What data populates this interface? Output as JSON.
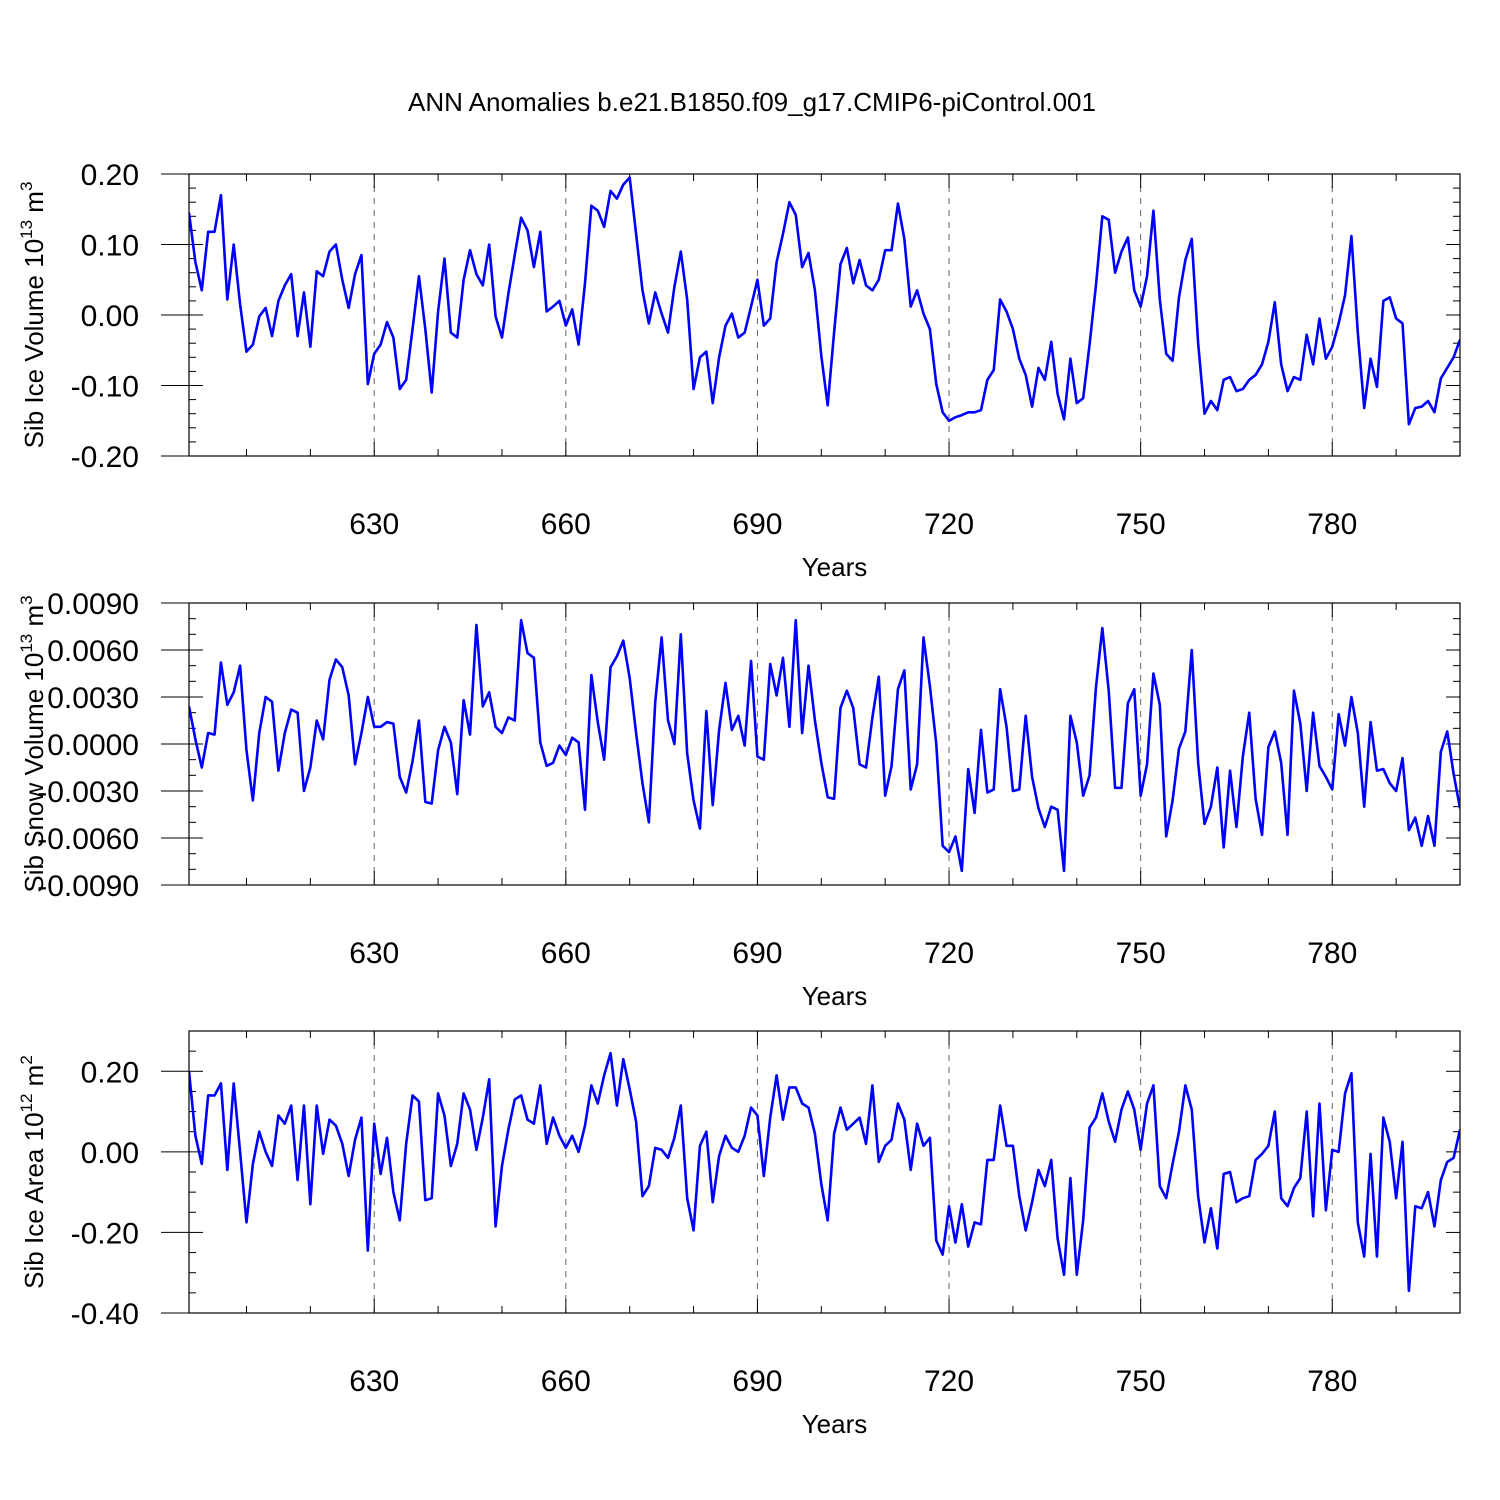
{
  "title": "ANN Anomalies b.e21.B1850.f09_g17.CMIP6-piControl.001",
  "line_color": "#0000ff",
  "chart_data": [
    {
      "type": "line",
      "title": "ANN Anomalies b.e21.B1850.f09_g17.CMIP6-piControl.001",
      "xlabel": "Years",
      "ylabel": "Sib Ice Volume 10^13 m^3",
      "ylabel_parts": [
        "Sib Ice Volume 10",
        "13",
        " m",
        "3"
      ],
      "x_start": 601,
      "x_step": 1,
      "xlim": [
        601,
        800
      ],
      "ylim": [
        -0.2,
        0.2
      ],
      "xticks": [
        630,
        660,
        690,
        720,
        750,
        780
      ],
      "xtick_labels": [
        "630",
        "660",
        "690",
        "720",
        "750",
        "780"
      ],
      "yticks": [
        -0.2,
        -0.1,
        0.0,
        0.1,
        0.2
      ],
      "ytick_labels": [
        "-0.20",
        "-0.10",
        "0.00",
        "0.10",
        "0.20"
      ],
      "y_minor_step": 0.02,
      "values": [
        0.145,
        0.075,
        0.035,
        0.118,
        0.118,
        0.17,
        0.022,
        0.1,
        0.015,
        -0.052,
        -0.042,
        -0.002,
        0.01,
        -0.03,
        0.02,
        0.042,
        0.058,
        -0.03,
        0.032,
        -0.045,
        0.062,
        0.055,
        0.09,
        0.1,
        0.05,
        0.01,
        0.058,
        0.085,
        -0.098,
        -0.055,
        -0.042,
        -0.01,
        -0.032,
        -0.105,
        -0.092,
        -0.02,
        0.055,
        -0.02,
        -0.11,
        0.005,
        0.08,
        -0.025,
        -0.032,
        0.05,
        0.092,
        0.058,
        0.042,
        0.1,
        -0.002,
        -0.032,
        0.03,
        0.085,
        0.138,
        0.12,
        0.068,
        0.118,
        0.005,
        0.012,
        0.02,
        -0.015,
        0.008,
        -0.042,
        0.045,
        0.155,
        0.148,
        0.125,
        0.176,
        0.165,
        0.185,
        0.195,
        0.115,
        0.035,
        -0.012,
        0.032,
        0.002,
        -0.025,
        0.04,
        0.09,
        0.022,
        -0.105,
        -0.06,
        -0.052,
        -0.125,
        -0.06,
        -0.015,
        0.002,
        -0.032,
        -0.025,
        0.012,
        0.05,
        -0.015,
        -0.005,
        0.075,
        0.115,
        0.16,
        0.142,
        0.068,
        0.088,
        0.035,
        -0.058,
        -0.128,
        -0.025,
        0.072,
        0.095,
        0.045,
        0.078,
        0.042,
        0.035,
        0.05,
        0.092,
        0.092,
        0.158,
        0.108,
        0.012,
        0.035,
        0.002,
        -0.02,
        -0.098,
        -0.138,
        -0.15,
        -0.145,
        -0.142,
        -0.138,
        -0.138,
        -0.135,
        -0.092,
        -0.078,
        0.022,
        0.005,
        -0.02,
        -0.062,
        -0.085,
        -0.13,
        -0.075,
        -0.092,
        -0.038,
        -0.112,
        -0.148,
        -0.062,
        -0.125,
        -0.118,
        -0.042,
        0.042,
        0.14,
        0.135,
        0.06,
        0.09,
        0.11,
        0.035,
        0.012,
        0.055,
        0.148,
        0.022,
        -0.055,
        -0.065,
        0.025,
        0.078,
        0.108,
        -0.04,
        -0.14,
        -0.122,
        -0.135,
        -0.092,
        -0.088,
        -0.108,
        -0.105,
        -0.092,
        -0.085,
        -0.07,
        -0.038,
        0.018,
        -0.07,
        -0.108,
        -0.088,
        -0.092,
        -0.028,
        -0.07,
        -0.005,
        -0.062,
        -0.045,
        -0.012,
        0.028,
        0.112,
        -0.025,
        -0.132,
        -0.062,
        -0.102,
        0.02,
        0.025,
        -0.005,
        -0.012,
        -0.155,
        -0.132,
        -0.13,
        -0.122,
        -0.138,
        -0.09,
        -0.075,
        -0.06,
        -0.035
      ]
    },
    {
      "type": "line",
      "xlabel": "Years",
      "ylabel": "Sib Snow Volume 10^13 m^3",
      "ylabel_parts": [
        "Sib Snow Volume 10",
        "13",
        " m",
        "3"
      ],
      "x_start": 601,
      "x_step": 1,
      "xlim": [
        601,
        800
      ],
      "ylim": [
        -0.009,
        0.009
      ],
      "xticks": [
        630,
        660,
        690,
        720,
        750,
        780
      ],
      "xtick_labels": [
        "630",
        "660",
        "690",
        "720",
        "750",
        "780"
      ],
      "yticks": [
        -0.009,
        -0.006,
        -0.003,
        0.0,
        0.003,
        0.006,
        0.009
      ],
      "ytick_labels": [
        "-0.0090",
        "-0.0060",
        "-0.0030",
        "0.0000",
        "0.0030",
        "0.0060",
        "0.0090"
      ],
      "y_minor_step": 0.001,
      "values": [
        0.0024,
        0.0003,
        -0.0015,
        0.0007,
        0.0006,
        0.0052,
        0.0025,
        0.0033,
        0.005,
        -0.0004,
        -0.0036,
        0.0007,
        0.003,
        0.0027,
        -0.0017,
        0.0007,
        0.0022,
        0.002,
        -0.003,
        -0.0015,
        0.0015,
        0.0003,
        0.0041,
        0.0054,
        0.0049,
        0.0031,
        -0.0013,
        0.0007,
        0.003,
        0.0011,
        0.0011,
        0.0014,
        0.0013,
        -0.0021,
        -0.0031,
        -0.0011,
        0.0015,
        -0.0037,
        -0.0038,
        -0.0004,
        0.0011,
        0.0001,
        -0.0032,
        0.0028,
        0.0006,
        0.0076,
        0.0024,
        0.0033,
        0.0011,
        0.0007,
        0.0017,
        0.0015,
        0.0079,
        0.0058,
        0.0055,
        0.0001,
        -0.0014,
        -0.0012,
        -0.0001,
        -0.0007,
        0.0004,
        0.0001,
        -0.0042,
        0.0044,
        0.0014,
        -0.001,
        0.0049,
        0.0056,
        0.0066,
        0.0042,
        0.0007,
        -0.0025,
        -0.005,
        0.0027,
        0.0068,
        0.0015,
        0.0,
        0.007,
        -0.0006,
        -0.0036,
        -0.0054,
        0.0021,
        -0.0039,
        0.0009,
        0.0039,
        0.0009,
        0.0018,
        -0.0001,
        0.0053,
        -0.0008,
        -0.001,
        0.0051,
        0.0031,
        0.0055,
        0.0011,
        0.0079,
        0.0007,
        0.005,
        0.0015,
        -0.0012,
        -0.0034,
        -0.0035,
        0.0023,
        0.0034,
        0.0023,
        -0.0013,
        -0.0015,
        0.0017,
        0.0043,
        -0.0033,
        -0.0014,
        0.0035,
        0.0047,
        -0.0029,
        -0.0013,
        0.0068,
        0.0037,
        0.0,
        -0.0065,
        -0.0069,
        -0.0059,
        -0.0081,
        -0.0016,
        -0.0044,
        0.0009,
        -0.0031,
        -0.0029,
        0.0035,
        0.0011,
        -0.003,
        -0.0029,
        0.0018,
        -0.0021,
        -0.0041,
        -0.0053,
        -0.004,
        -0.0042,
        -0.0081,
        0.0018,
        0.0001,
        -0.0033,
        -0.002,
        0.0036,
        0.0074,
        0.0034,
        -0.0028,
        -0.0028,
        0.0026,
        0.0035,
        -0.0033,
        -0.0013,
        0.0045,
        0.0025,
        -0.0059,
        -0.0036,
        -0.0003,
        0.0008,
        0.006,
        -0.0012,
        -0.0051,
        -0.004,
        -0.0015,
        -0.0066,
        -0.0017,
        -0.0053,
        -0.0008,
        0.002,
        -0.0035,
        -0.0058,
        -0.0002,
        0.0008,
        -0.0012,
        -0.0058,
        0.0034,
        0.0013,
        -0.003,
        0.002,
        -0.0014,
        -0.0021,
        -0.0029,
        0.0019,
        -0.0001,
        0.003,
        0.0007,
        -0.004,
        0.0014,
        -0.0017,
        -0.0016,
        -0.0025,
        -0.003,
        -0.0009,
        -0.0055,
        -0.0047,
        -0.0065,
        -0.0046,
        -0.0065,
        -0.0005,
        0.0008,
        -0.0019,
        -0.0041
      ]
    },
    {
      "type": "line",
      "xlabel": "Years",
      "ylabel": "Sib Ice Area 10^12 m^2",
      "ylabel_parts": [
        "Sib Ice Area 10",
        "12",
        " m",
        "2"
      ],
      "x_start": 601,
      "x_step": 1,
      "xlim": [
        601,
        800
      ],
      "ylim": [
        -0.4,
        0.3
      ],
      "xticks": [
        630,
        660,
        690,
        720,
        750,
        780
      ],
      "xtick_labels": [
        "630",
        "660",
        "690",
        "720",
        "750",
        "780"
      ],
      "yticks": [
        -0.4,
        -0.2,
        0.0,
        0.2
      ],
      "ytick_labels": [
        "-0.40",
        "-0.20",
        "0.00",
        "0.20"
      ],
      "y_minor_step": 0.05,
      "values": [
        0.2,
        0.04,
        -0.03,
        0.14,
        0.14,
        0.17,
        -0.045,
        0.17,
        0.0,
        -0.175,
        -0.03,
        0.05,
        0.0,
        -0.035,
        0.09,
        0.07,
        0.115,
        -0.07,
        0.115,
        -0.13,
        0.115,
        -0.005,
        0.08,
        0.065,
        0.02,
        -0.06,
        0.03,
        0.085,
        -0.245,
        0.07,
        -0.055,
        0.035,
        -0.1,
        -0.17,
        0.02,
        0.14,
        0.125,
        -0.12,
        -0.115,
        0.145,
        0.09,
        -0.035,
        0.02,
        0.145,
        0.105,
        0.005,
        0.085,
        0.18,
        -0.185,
        -0.035,
        0.055,
        0.13,
        0.14,
        0.08,
        0.07,
        0.165,
        0.02,
        0.085,
        0.04,
        0.01,
        0.04,
        0.0,
        0.065,
        0.165,
        0.12,
        0.19,
        0.245,
        0.115,
        0.23,
        0.155,
        0.075,
        -0.11,
        -0.085,
        0.01,
        0.005,
        -0.015,
        0.035,
        0.115,
        -0.115,
        -0.195,
        0.015,
        0.05,
        -0.125,
        -0.01,
        0.04,
        0.01,
        0.0,
        0.04,
        0.11,
        0.09,
        -0.06,
        0.085,
        0.19,
        0.08,
        0.16,
        0.16,
        0.12,
        0.11,
        0.045,
        -0.08,
        -0.17,
        0.045,
        0.11,
        0.055,
        0.07,
        0.085,
        0.02,
        0.165,
        -0.025,
        0.015,
        0.03,
        0.12,
        0.08,
        -0.045,
        0.07,
        0.015,
        0.035,
        -0.22,
        -0.255,
        -0.135,
        -0.225,
        -0.13,
        -0.235,
        -0.175,
        -0.18,
        -0.02,
        -0.02,
        0.115,
        0.015,
        0.015,
        -0.11,
        -0.195,
        -0.125,
        -0.045,
        -0.085,
        -0.02,
        -0.215,
        -0.305,
        -0.065,
        -0.305,
        -0.17,
        0.06,
        0.085,
        0.145,
        0.075,
        0.025,
        0.105,
        0.15,
        0.105,
        0.005,
        0.12,
        0.165,
        -0.085,
        -0.115,
        -0.03,
        0.05,
        0.165,
        0.105,
        -0.11,
        -0.225,
        -0.14,
        -0.24,
        -0.055,
        -0.05,
        -0.125,
        -0.115,
        -0.11,
        -0.02,
        -0.005,
        0.015,
        0.1,
        -0.115,
        -0.135,
        -0.09,
        -0.065,
        0.1,
        -0.16,
        0.12,
        -0.145,
        0.005,
        0.0,
        0.145,
        0.195,
        -0.175,
        -0.26,
        -0.005,
        -0.26,
        0.085,
        0.025,
        -0.115,
        0.025,
        -0.345,
        -0.135,
        -0.14,
        -0.1,
        -0.185,
        -0.07,
        -0.025,
        -0.015,
        0.055
      ]
    }
  ]
}
